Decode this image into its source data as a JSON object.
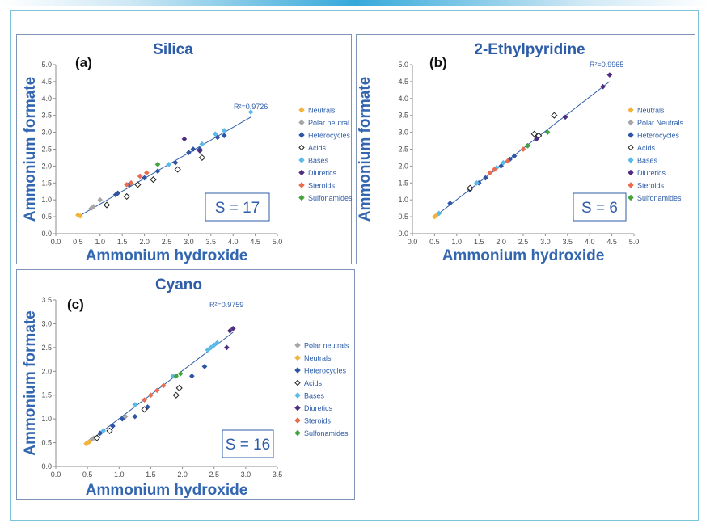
{
  "chart_data": [
    {
      "id": "a",
      "type": "scatter",
      "title": "Silica",
      "panel_label": "(a)",
      "xlabel": "Ammonium hydroxide",
      "ylabel": "Ammonium formate",
      "xlim": [
        0,
        5
      ],
      "ylim": [
        0,
        5
      ],
      "xticks": [
        "0.0",
        "0.5",
        "1.0",
        "1.5",
        "2.0",
        "2.5",
        "3.0",
        "3.5",
        "4.0",
        "4.5",
        "5.0"
      ],
      "yticks": [
        "0.0",
        "0.5",
        "1.0",
        "1.5",
        "2.0",
        "2.5",
        "3.0",
        "3.5",
        "4.0",
        "4.5",
        "5.0"
      ],
      "r2": "R²=0.9726",
      "s_label": "S = 17",
      "fit": {
        "x": [
          0.5,
          4.4
        ],
        "y": [
          0.5,
          3.45
        ]
      },
      "legend": [
        "Neutrals",
        "Polar neutral",
        "Heterocycles",
        "Acids",
        "Bases",
        "Diuretics",
        "Steroids",
        "Sulfonamides"
      ],
      "series": [
        {
          "name": "Neutrals",
          "color": "#f2b33d",
          "marker": "diamond",
          "x": [
            0.5,
            0.55
          ],
          "y": [
            0.55,
            0.52
          ]
        },
        {
          "name": "Polar neutral",
          "color": "#a6a6a6",
          "marker": "diamond",
          "x": [
            0.8,
            0.85,
            1.0
          ],
          "y": [
            0.75,
            0.8,
            1.0
          ]
        },
        {
          "name": "Heterocycles",
          "color": "#2f55a4",
          "marker": "diamond",
          "x": [
            1.35,
            1.4,
            1.65,
            2.0,
            2.3,
            2.7,
            3.0,
            3.1,
            3.25,
            3.65,
            3.8
          ],
          "y": [
            1.15,
            1.2,
            1.45,
            1.65,
            1.85,
            2.1,
            2.4,
            2.5,
            2.5,
            2.85,
            2.9
          ]
        },
        {
          "name": "Acids",
          "color": "#222222",
          "marker": "open-diamond",
          "x": [
            1.15,
            1.6,
            1.85,
            2.2,
            2.75,
            3.3
          ],
          "y": [
            0.85,
            1.1,
            1.45,
            1.6,
            1.9,
            2.25
          ]
        },
        {
          "name": "Bases",
          "color": "#5bbbe8",
          "marker": "diamond",
          "x": [
            1.7,
            2.55,
            3.3,
            3.6,
            3.8,
            4.4
          ],
          "y": [
            1.5,
            2.05,
            2.65,
            2.95,
            3.05,
            3.6
          ]
        },
        {
          "name": "Diuretics",
          "color": "#4f2d80",
          "marker": "diamond",
          "x": [
            2.9,
            3.25
          ],
          "y": [
            2.8,
            2.45
          ]
        },
        {
          "name": "Steroids",
          "color": "#ea6b4d",
          "marker": "diamond",
          "x": [
            1.6,
            1.7,
            1.9,
            2.05
          ],
          "y": [
            1.45,
            1.5,
            1.7,
            1.8
          ]
        },
        {
          "name": "Sulfonamides",
          "color": "#43a33d",
          "marker": "diamond",
          "x": [
            2.3
          ],
          "y": [
            2.05
          ]
        }
      ]
    },
    {
      "id": "b",
      "type": "scatter",
      "title": "2-Ethylpyridine",
      "panel_label": "(b)",
      "xlabel": "Ammonium hydroxide",
      "ylabel": "Ammonium formate",
      "xlim": [
        0,
        5
      ],
      "ylim": [
        0,
        5
      ],
      "xticks": [
        "0.0",
        "0.5",
        "1.0",
        "1.5",
        "2.0",
        "2.5",
        "3.0",
        "3.5",
        "4.0",
        "4.5",
        "5.0"
      ],
      "yticks": [
        "0.0",
        "0.5",
        "1.0",
        "1.5",
        "2.0",
        "2.5",
        "3.0",
        "3.5",
        "4.0",
        "4.5",
        "5.0"
      ],
      "r2": "R²=0.9965",
      "s_label": "S = 6",
      "fit": {
        "x": [
          0.5,
          4.45
        ],
        "y": [
          0.5,
          4.5
        ]
      },
      "legend": [
        "Neutrals",
        "Polar Neutrals",
        "Heterocycles",
        "Acids",
        "Bases",
        "Diuretics",
        "Steroids",
        "Sulfonamides"
      ],
      "series": [
        {
          "name": "Neutrals",
          "color": "#f2b33d",
          "marker": "diamond",
          "x": [
            0.5,
            0.55
          ],
          "y": [
            0.5,
            0.55
          ]
        },
        {
          "name": "Polar Neutrals",
          "color": "#a6a6a6",
          "marker": "diamond",
          "x": [
            0.6
          ],
          "y": [
            0.6
          ]
        },
        {
          "name": "Heterocycles",
          "color": "#2f55a4",
          "marker": "diamond",
          "x": [
            0.85,
            1.3,
            1.5,
            1.65,
            2.0,
            2.2,
            2.3,
            2.6,
            2.8
          ],
          "y": [
            0.9,
            1.3,
            1.5,
            1.65,
            2.0,
            2.2,
            2.3,
            2.6,
            2.85
          ]
        },
        {
          "name": "Acids",
          "color": "#222222",
          "marker": "open-diamond",
          "x": [
            1.3,
            2.75,
            2.85,
            3.2
          ],
          "y": [
            1.35,
            2.95,
            2.9,
            3.5
          ]
        },
        {
          "name": "Bases",
          "color": "#5bbbe8",
          "marker": "diamond",
          "x": [
            0.6,
            1.45,
            1.9,
            2.05
          ],
          "y": [
            0.6,
            1.5,
            1.95,
            2.1
          ]
        },
        {
          "name": "Diuretics",
          "color": "#4f2d80",
          "marker": "diamond",
          "x": [
            2.8,
            3.45,
            4.3,
            4.45
          ],
          "y": [
            2.8,
            3.45,
            4.35,
            4.7
          ]
        },
        {
          "name": "Steroids",
          "color": "#ea6b4d",
          "marker": "diamond",
          "x": [
            1.75,
            1.85,
            2.15,
            2.5
          ],
          "y": [
            1.8,
            1.9,
            2.15,
            2.5
          ]
        },
        {
          "name": "Sulfonamides",
          "color": "#43a33d",
          "marker": "diamond",
          "x": [
            2.6,
            3.05
          ],
          "y": [
            2.6,
            3.0
          ]
        }
      ]
    },
    {
      "id": "c",
      "type": "scatter",
      "title": "Cyano",
      "panel_label": "(c)",
      "xlabel": "Ammonium hydroxide",
      "ylabel": "Ammonium formate",
      "xlim": [
        0,
        3.5
      ],
      "ylim": [
        0,
        3.5
      ],
      "xticks": [
        "0.0",
        "0.5",
        "1.0",
        "1.5",
        "2.0",
        "2.5",
        "3.0",
        "3.5"
      ],
      "yticks": [
        "0.0",
        "0.5",
        "1.0",
        "1.5",
        "2.0",
        "2.5",
        "3.0",
        "3.5"
      ],
      "r2": "R²=0.9759",
      "s_label": "S = 16",
      "fit": {
        "x": [
          0.5,
          2.8
        ],
        "y": [
          0.5,
          2.82
        ]
      },
      "legend": [
        "Polar neutrals",
        "Neutrals",
        "Heterocycles",
        "Acids",
        "Bases",
        "Diuretics",
        "Steroids",
        "Sulfonamides"
      ],
      "series": [
        {
          "name": "Polar neutrals",
          "color": "#a6a6a6",
          "marker": "diamond",
          "x": [
            0.55,
            0.6,
            1.1
          ],
          "y": [
            0.55,
            0.6,
            1.05
          ]
        },
        {
          "name": "Neutrals",
          "color": "#f2b33d",
          "marker": "diamond",
          "x": [
            0.48,
            0.5,
            0.53
          ],
          "y": [
            0.48,
            0.5,
            0.52
          ]
        },
        {
          "name": "Heterocycles",
          "color": "#2f55a4",
          "marker": "diamond",
          "x": [
            0.7,
            0.9,
            1.05,
            1.25,
            1.4,
            1.45,
            2.15,
            2.35
          ],
          "y": [
            0.7,
            0.85,
            1.0,
            1.05,
            1.2,
            1.25,
            1.9,
            2.1
          ]
        },
        {
          "name": "Acids",
          "color": "#222222",
          "marker": "open-diamond",
          "x": [
            0.65,
            0.85,
            1.4,
            1.9,
            1.95
          ],
          "y": [
            0.6,
            0.75,
            1.2,
            1.5,
            1.65
          ]
        },
        {
          "name": "Bases",
          "color": "#5bbbe8",
          "marker": "diamond",
          "x": [
            0.75,
            1.25,
            1.85,
            2.4,
            2.45,
            2.5,
            2.55
          ],
          "y": [
            0.75,
            1.3,
            1.9,
            2.45,
            2.5,
            2.55,
            2.6
          ]
        },
        {
          "name": "Diuretics",
          "color": "#4f2d80",
          "marker": "diamond",
          "x": [
            2.7,
            2.75,
            2.8
          ],
          "y": [
            2.5,
            2.85,
            2.9
          ]
        },
        {
          "name": "Steroids",
          "color": "#ea6b4d",
          "marker": "diamond",
          "x": [
            1.4,
            1.5,
            1.6,
            1.7
          ],
          "y": [
            1.4,
            1.5,
            1.6,
            1.7
          ]
        },
        {
          "name": "Sulfonamides",
          "color": "#43a33d",
          "marker": "diamond",
          "x": [
            1.9,
            1.97
          ],
          "y": [
            1.9,
            1.95
          ]
        }
      ]
    }
  ]
}
